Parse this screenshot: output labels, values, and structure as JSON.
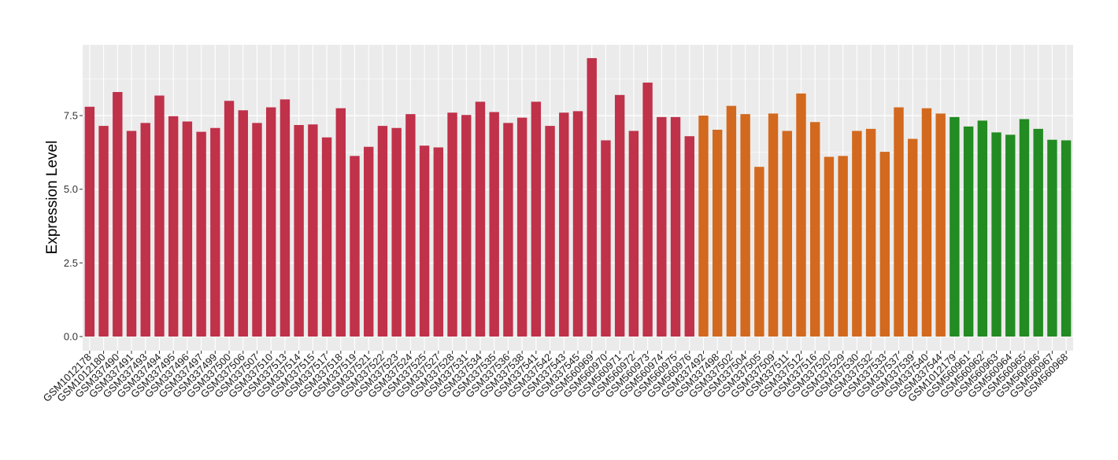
{
  "chart_data": {
    "type": "bar",
    "ylabel": "Expression Level",
    "xlabel": "",
    "ylim": [
      0,
      9.8
    ],
    "yticks": [
      0.0,
      2.5,
      5.0,
      7.5
    ],
    "ytick_labels": [
      "0.0",
      "2.5",
      "5.0",
      "7.5"
    ],
    "grid": true,
    "legend": "none",
    "colors": {
      "red": "#c0314a",
      "orange": "#d2691e",
      "green": "#228b22",
      "panel": "#ebebeb",
      "grid": "#ffffff"
    },
    "categories": [
      "GSM1012178",
      "GSM1012180",
      "GSM337490",
      "GSM337491",
      "GSM337493",
      "GSM337494",
      "GSM337495",
      "GSM337496",
      "GSM337497",
      "GSM337499",
      "GSM337500",
      "GSM337506",
      "GSM337507",
      "GSM337510",
      "GSM337513",
      "GSM337514",
      "GSM337515",
      "GSM337517",
      "GSM337518",
      "GSM337519",
      "GSM337521",
      "GSM337522",
      "GSM337523",
      "GSM337524",
      "GSM337525",
      "GSM337527",
      "GSM337528",
      "GSM337531",
      "GSM337534",
      "GSM337535",
      "GSM337536",
      "GSM337538",
      "GSM337541",
      "GSM337542",
      "GSM337543",
      "GSM337545",
      "GSM560969",
      "GSM560970",
      "GSM560971",
      "GSM560972",
      "GSM560973",
      "GSM560974",
      "GSM560975",
      "GSM560976",
      "GSM337492",
      "GSM337498",
      "GSM337502",
      "GSM337504",
      "GSM337505",
      "GSM337509",
      "GSM337511",
      "GSM337512",
      "GSM337516",
      "GSM337520",
      "GSM337529",
      "GSM337530",
      "GSM337532",
      "GSM337533",
      "GSM337537",
      "GSM337539",
      "GSM337540",
      "GSM337544",
      "GSM1012179",
      "GSM560961",
      "GSM560962",
      "GSM560963",
      "GSM560964",
      "GSM560965",
      "GSM560966",
      "GSM560967",
      "GSM560968"
    ],
    "values": [
      7.8,
      7.15,
      8.3,
      6.98,
      7.25,
      8.18,
      7.48,
      7.3,
      6.95,
      7.08,
      8.0,
      7.68,
      7.25,
      7.78,
      8.05,
      7.18,
      7.2,
      6.76,
      7.75,
      6.13,
      6.44,
      7.15,
      7.08,
      7.55,
      6.48,
      6.42,
      7.6,
      7.52,
      7.97,
      7.62,
      7.25,
      7.43,
      7.97,
      7.15,
      7.6,
      7.65,
      9.45,
      6.66,
      8.2,
      6.98,
      8.62,
      7.45,
      7.45,
      6.8,
      7.5,
      7.02,
      7.83,
      7.55,
      5.76,
      7.57,
      6.98,
      8.25,
      7.28,
      6.1,
      6.13,
      6.98,
      7.05,
      6.27,
      7.78,
      6.71,
      7.75,
      7.57,
      7.45,
      7.13,
      7.33,
      6.93,
      6.85,
      7.38,
      7.05,
      6.68,
      6.66
    ],
    "bar_color_groups": [
      "red",
      "red",
      "red",
      "red",
      "red",
      "red",
      "red",
      "red",
      "red",
      "red",
      "red",
      "red",
      "red",
      "red",
      "red",
      "red",
      "red",
      "red",
      "red",
      "red",
      "red",
      "red",
      "red",
      "red",
      "red",
      "red",
      "red",
      "red",
      "red",
      "red",
      "red",
      "red",
      "red",
      "red",
      "red",
      "red",
      "red",
      "red",
      "red",
      "red",
      "red",
      "red",
      "red",
      "red",
      "orange",
      "orange",
      "orange",
      "orange",
      "orange",
      "orange",
      "orange",
      "orange",
      "orange",
      "orange",
      "orange",
      "orange",
      "orange",
      "orange",
      "orange",
      "orange",
      "orange",
      "orange",
      "green",
      "green",
      "green",
      "green",
      "green",
      "green",
      "green",
      "green",
      "green"
    ]
  }
}
